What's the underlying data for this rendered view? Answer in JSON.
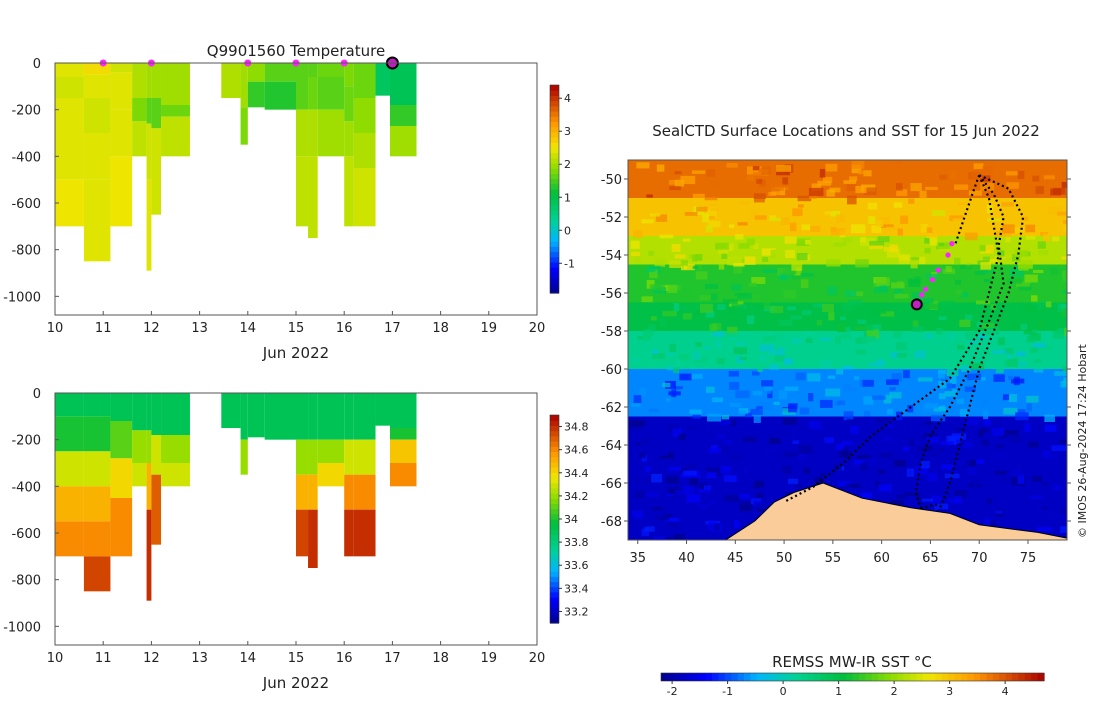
{
  "temperature_panel": {
    "title": "Q9901560  Temperature",
    "xlabel": "Jun 2022",
    "x_ticks": [
      "10",
      "11",
      "12",
      "13",
      "14",
      "15",
      "16",
      "17",
      "18",
      "19",
      "20"
    ],
    "y_ticks": [
      "0",
      "-200",
      "-400",
      "-600",
      "-800",
      "-1000"
    ],
    "colorbar_ticks": [
      "4",
      "3",
      "2",
      "1",
      "0",
      "-1"
    ]
  },
  "salinity_panel": {
    "xlabel": "Jun 2022",
    "x_ticks": [
      "10",
      "11",
      "12",
      "13",
      "14",
      "15",
      "16",
      "17",
      "18",
      "19",
      "20"
    ],
    "y_ticks": [
      "0",
      "-200",
      "-400",
      "-600",
      "-800",
      "-1000"
    ],
    "colorbar_ticks": [
      "34.8",
      "34.6",
      "34.4",
      "34.2",
      "34",
      "33.8",
      "33.6",
      "33.4",
      "33.2"
    ]
  },
  "map_panel": {
    "title": "SealCTD Surface Locations and SST for 15 Jun 2022",
    "x_ticks": [
      "35",
      "40",
      "45",
      "50",
      "55",
      "60",
      "65",
      "70",
      "75"
    ],
    "y_ticks": [
      "-50",
      "-52",
      "-54",
      "-56",
      "-58",
      "-60",
      "-62",
      "-64",
      "-66",
      "-68"
    ],
    "colorbar_label": "REMSS MW-IR SST °C",
    "colorbar_ticks": [
      "-2",
      "-1",
      "0",
      "1",
      "2",
      "3",
      "4"
    ],
    "credit": "© IMOS 26-Aug-2024 17:24 Hobart"
  },
  "colors": {
    "profile_marker": "#ff22ff",
    "current_marker": "#c020c0",
    "land": "#f9cc9a",
    "track": "#000000"
  },
  "chart_data": [
    {
      "type": "heatmap",
      "variable": "Temperature",
      "title": "Q9901560  Temperature",
      "xlabel": "Jun 2022",
      "xlim": [
        10,
        20
      ],
      "ylim": [
        -1080,
        0
      ],
      "clim": [
        -1.9,
        4.4
      ],
      "profile_markers": [
        11.0,
        12.0,
        14.0,
        15.0,
        16.0
      ],
      "current_marker": 17.0,
      "profiles": [
        {
          "x0": 10.0,
          "x1": 10.6,
          "bottom": -700,
          "layers": [
            [
              -60,
              2.4
            ],
            [
              -150,
              2.3
            ],
            [
              -300,
              2.4
            ],
            [
              -500,
              2.4
            ],
            [
              -700,
              2.5
            ]
          ]
        },
        {
          "x0": 10.6,
          "x1": 11.15,
          "bottom": -850,
          "layers": [
            [
              -50,
              2.6
            ],
            [
              -150,
              2.4
            ],
            [
              -300,
              2.3
            ],
            [
              -500,
              2.4
            ],
            [
              -850,
              2.4
            ]
          ]
        },
        {
          "x0": 11.15,
          "x1": 11.6,
          "bottom": -700,
          "layers": [
            [
              -40,
              2.3
            ],
            [
              -200,
              2.4
            ],
            [
              -400,
              2.4
            ],
            [
              -700,
              2.5
            ]
          ]
        },
        {
          "x0": 11.6,
          "x1": 11.9,
          "bottom": -400,
          "layers": [
            [
              -150,
              2.1
            ],
            [
              -250,
              1.8
            ],
            [
              -400,
              2.2
            ]
          ]
        },
        {
          "x0": 11.9,
          "x1": 12.0,
          "bottom": -890,
          "layers": [
            [
              -150,
              2.0
            ],
            [
              -260,
              1.6
            ],
            [
              -500,
              2.3
            ],
            [
              -890,
              2.4
            ]
          ]
        },
        {
          "x0": 12.0,
          "x1": 12.2,
          "bottom": -650,
          "layers": [
            [
              -150,
              2.0
            ],
            [
              -280,
              1.6
            ],
            [
              -650,
              2.3
            ]
          ]
        },
        {
          "x0": 12.2,
          "x1": 12.8,
          "bottom": -400,
          "layers": [
            [
              -180,
              2.0
            ],
            [
              -230,
              1.7
            ],
            [
              -400,
              2.2
            ]
          ]
        },
        {
          "x0": 13.45,
          "x1": 13.85,
          "bottom": -150,
          "layers": [
            [
              -150,
              2.1
            ]
          ]
        },
        {
          "x0": 13.85,
          "x1": 14.0,
          "bottom": -350,
          "layers": [
            [
              -190,
              2.0
            ],
            [
              -350,
              1.8
            ]
          ]
        },
        {
          "x0": 14.0,
          "x1": 14.35,
          "bottom": -190,
          "layers": [
            [
              -80,
              1.9
            ],
            [
              -190,
              1.4
            ]
          ]
        },
        {
          "x0": 14.35,
          "x1": 15.0,
          "bottom": -200,
          "layers": [
            [
              -80,
              1.6
            ],
            [
              -200,
              1.3
            ]
          ]
        },
        {
          "x0": 15.0,
          "x1": 15.25,
          "bottom": -700,
          "layers": [
            [
              -60,
              1.6
            ],
            [
              -200,
              1.6
            ],
            [
              -400,
              2.1
            ],
            [
              -700,
              2.2
            ]
          ]
        },
        {
          "x0": 15.25,
          "x1": 15.45,
          "bottom": -750,
          "layers": [
            [
              -60,
              1.6
            ],
            [
              -200,
              1.7
            ],
            [
              -400,
              2.1
            ],
            [
              -750,
              2.2
            ]
          ]
        },
        {
          "x0": 15.45,
          "x1": 16.0,
          "bottom": -400,
          "layers": [
            [
              -60,
              1.7
            ],
            [
              -200,
              1.6
            ],
            [
              -400,
              2.0
            ]
          ]
        },
        {
          "x0": 16.0,
          "x1": 16.2,
          "bottom": -700,
          "layers": [
            [
              -100,
              1.8
            ],
            [
              -250,
              1.7
            ],
            [
              -400,
              2.0
            ],
            [
              -700,
              2.2
            ]
          ]
        },
        {
          "x0": 16.2,
          "x1": 16.65,
          "bottom": -700,
          "layers": [
            [
              -150,
              1.7
            ],
            [
              -300,
              1.9
            ],
            [
              -450,
              2.1
            ],
            [
              -700,
              2.3
            ]
          ]
        },
        {
          "x0": 16.65,
          "x1": 16.95,
          "bottom": -140,
          "layers": [
            [
              -140,
              0.8
            ]
          ]
        },
        {
          "x0": 16.95,
          "x1": 17.5,
          "bottom": -400,
          "layers": [
            [
              -180,
              0.9
            ],
            [
              -270,
              1.4
            ],
            [
              -400,
              2.0
            ]
          ]
        }
      ]
    },
    {
      "type": "heatmap",
      "variable": "Salinity",
      "xlabel": "Jun 2022",
      "xlim": [
        10,
        20
      ],
      "ylim": [
        -1080,
        0
      ],
      "clim": [
        33.1,
        34.9
      ],
      "profiles": [
        {
          "x0": 10.0,
          "x1": 10.6,
          "bottom": -700,
          "layers": [
            [
              -100,
              33.9
            ],
            [
              -250,
              34.0
            ],
            [
              -400,
              34.3
            ],
            [
              -550,
              34.5
            ],
            [
              -700,
              34.6
            ]
          ]
        },
        {
          "x0": 10.6,
          "x1": 11.15,
          "bottom": -850,
          "layers": [
            [
              -100,
              33.9
            ],
            [
              -250,
              34.0
            ],
            [
              -400,
              34.3
            ],
            [
              -550,
              34.5
            ],
            [
              -700,
              34.6
            ],
            [
              -850,
              34.75
            ]
          ]
        },
        {
          "x0": 11.15,
          "x1": 11.6,
          "bottom": -700,
          "layers": [
            [
              -120,
              33.9
            ],
            [
              -280,
              34.1
            ],
            [
              -450,
              34.4
            ],
            [
              -700,
              34.6
            ]
          ]
        },
        {
          "x0": 11.6,
          "x1": 11.9,
          "bottom": -400,
          "layers": [
            [
              -160,
              33.9
            ],
            [
              -300,
              34.2
            ],
            [
              -400,
              34.3
            ]
          ]
        },
        {
          "x0": 11.9,
          "x1": 12.0,
          "bottom": -890,
          "layers": [
            [
              -160,
              33.9
            ],
            [
              -300,
              34.2
            ],
            [
              -500,
              34.5
            ],
            [
              -890,
              34.8
            ]
          ]
        },
        {
          "x0": 12.0,
          "x1": 12.2,
          "bottom": -650,
          "layers": [
            [
              -180,
              33.9
            ],
            [
              -350,
              34.3
            ],
            [
              -650,
              34.7
            ]
          ]
        },
        {
          "x0": 12.2,
          "x1": 12.8,
          "bottom": -400,
          "layers": [
            [
              -180,
              33.9
            ],
            [
              -300,
              34.2
            ],
            [
              -400,
              34.3
            ]
          ]
        },
        {
          "x0": 13.45,
          "x1": 13.85,
          "bottom": -150,
          "layers": [
            [
              -150,
              33.9
            ]
          ]
        },
        {
          "x0": 13.85,
          "x1": 14.0,
          "bottom": -350,
          "layers": [
            [
              -200,
              33.9
            ],
            [
              -350,
              34.2
            ]
          ]
        },
        {
          "x0": 14.0,
          "x1": 14.35,
          "bottom": -190,
          "layers": [
            [
              -190,
              33.9
            ]
          ]
        },
        {
          "x0": 14.35,
          "x1": 15.0,
          "bottom": -200,
          "layers": [
            [
              -200,
              33.9
            ]
          ]
        },
        {
          "x0": 15.0,
          "x1": 15.25,
          "bottom": -700,
          "layers": [
            [
              -200,
              33.9
            ],
            [
              -350,
              34.2
            ],
            [
              -500,
              34.5
            ],
            [
              -700,
              34.75
            ]
          ]
        },
        {
          "x0": 15.25,
          "x1": 15.45,
          "bottom": -750,
          "layers": [
            [
              -200,
              33.9
            ],
            [
              -350,
              34.2
            ],
            [
              -500,
              34.5
            ],
            [
              -750,
              34.8
            ]
          ]
        },
        {
          "x0": 15.45,
          "x1": 16.0,
          "bottom": -400,
          "layers": [
            [
              -200,
              33.9
            ],
            [
              -300,
              34.2
            ],
            [
              -400,
              34.4
            ]
          ]
        },
        {
          "x0": 16.0,
          "x1": 16.2,
          "bottom": -700,
          "layers": [
            [
              -200,
              33.9
            ],
            [
              -350,
              34.3
            ],
            [
              -500,
              34.6
            ],
            [
              -700,
              34.8
            ]
          ]
        },
        {
          "x0": 16.2,
          "x1": 16.65,
          "bottom": -700,
          "layers": [
            [
              -200,
              33.9
            ],
            [
              -350,
              34.3
            ],
            [
              -500,
              34.6
            ],
            [
              -700,
              34.8
            ]
          ]
        },
        {
          "x0": 16.65,
          "x1": 16.95,
          "bottom": -140,
          "layers": [
            [
              -140,
              33.9
            ]
          ]
        },
        {
          "x0": 16.95,
          "x1": 17.5,
          "bottom": -400,
          "layers": [
            [
              -150,
              33.9
            ],
            [
              -200,
              34.0
            ],
            [
              -300,
              34.45
            ],
            [
              -400,
              34.6
            ]
          ]
        }
      ]
    },
    {
      "type": "heatmap",
      "variable": "SST",
      "title": "SealCTD Surface Locations and SST for 15 Jun 2022",
      "xlim": [
        34,
        79
      ],
      "ylim": [
        -69,
        -49
      ],
      "clim": [
        -2.2,
        4.7
      ],
      "colorbar_label": "REMSS MW-IR SST °C",
      "sst_bands": [
        {
          "lat_top": -49,
          "lat_bottom": -51,
          "sst": 3.8
        },
        {
          "lat_top": -51,
          "lat_bottom": -53,
          "sst": 3.0
        },
        {
          "lat_top": -53,
          "lat_bottom": -54.5,
          "sst": 2.2
        },
        {
          "lat_top": -54.5,
          "lat_bottom": -56.5,
          "sst": 1.3
        },
        {
          "lat_top": -56.5,
          "lat_bottom": -58,
          "sst": 1.0
        },
        {
          "lat_top": -58,
          "lat_bottom": -60,
          "sst": 0.3
        },
        {
          "lat_top": -60,
          "lat_bottom": -62.5,
          "sst": -0.7
        },
        {
          "lat_top": -62.5,
          "lat_bottom": -69,
          "sst": -1.8
        }
      ],
      "land": [
        [
          34,
          -69
        ],
        [
          44,
          -69
        ],
        [
          47,
          -68
        ],
        [
          49,
          -67
        ],
        [
          51,
          -66.5
        ],
        [
          54,
          -66
        ],
        [
          58,
          -66.8
        ],
        [
          63,
          -67.3
        ],
        [
          67,
          -67.6
        ],
        [
          70,
          -68.2
        ],
        [
          73,
          -68.4
        ],
        [
          76,
          -68.6
        ],
        [
          79,
          -68.9
        ],
        [
          79,
          -69
        ]
      ],
      "tracks": [
        [
          [
            70,
            -49.8
          ],
          [
            71.5,
            -50.8
          ],
          [
            72.5,
            -52
          ],
          [
            72,
            -53.5
          ],
          [
            72.5,
            -55.5
          ],
          [
            71,
            -57.5
          ],
          [
            69,
            -60
          ],
          [
            67,
            -62
          ],
          [
            65,
            -63.5
          ],
          [
            64,
            -65
          ],
          [
            63.5,
            -66.5
          ],
          [
            64,
            -67.3
          ],
          [
            66,
            -67.1
          ]
        ],
        [
          [
            70,
            -49.8
          ],
          [
            71,
            -51
          ],
          [
            71.5,
            -52.5
          ],
          [
            72,
            -54
          ],
          [
            71,
            -56
          ],
          [
            70,
            -58
          ],
          [
            67,
            -60.5
          ],
          [
            63,
            -62
          ],
          [
            59,
            -63.5
          ],
          [
            56,
            -65
          ],
          [
            53,
            -66.2
          ],
          [
            50,
            -67
          ]
        ],
        [
          [
            70,
            -49.8
          ],
          [
            73,
            -50.5
          ],
          [
            74.5,
            -52
          ],
          [
            74,
            -54
          ],
          [
            73,
            -56
          ],
          [
            71.5,
            -58
          ],
          [
            70,
            -60
          ],
          [
            69,
            -62
          ],
          [
            68,
            -64
          ],
          [
            67,
            -66
          ],
          [
            66,
            -67.3
          ]
        ],
        [
          [
            70,
            -49.8
          ],
          [
            69.5,
            -50.5
          ],
          [
            68.5,
            -52
          ],
          [
            67.5,
            -53.5
          ]
        ]
      ],
      "profile_points": [
        [
          67.2,
          -53.4
        ],
        [
          66.8,
          -54.0
        ],
        [
          65.8,
          -54.8
        ],
        [
          65.2,
          -55.3
        ],
        [
          64.5,
          -55.8
        ],
        [
          64.1,
          -56.1
        ]
      ],
      "current_point": [
        63.6,
        -56.6
      ]
    }
  ]
}
